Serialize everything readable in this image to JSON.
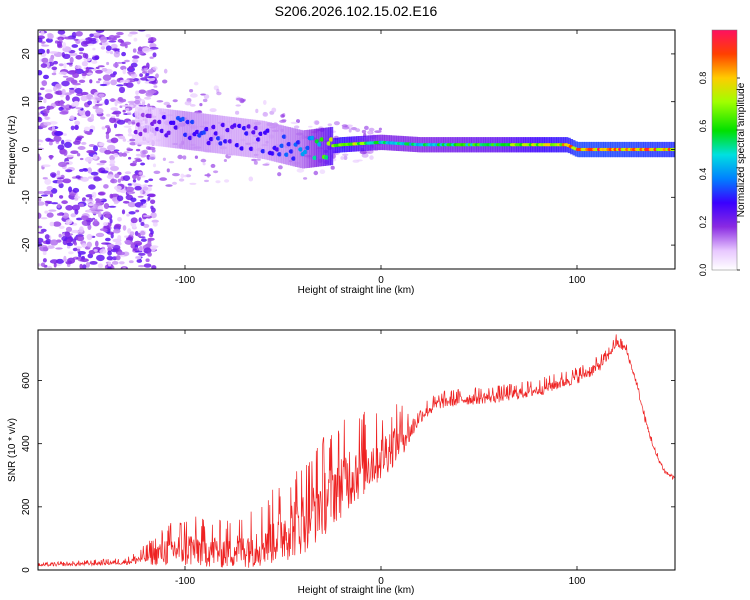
{
  "title": "S206.2026.102.15.02.E16",
  "chart_data": [
    {
      "type": "heatmap",
      "xlabel": "Height of straight line (km)",
      "ylabel": "Frequency (Hz)",
      "xlim": [
        -175,
        150
      ],
      "ylim": [
        -25,
        25
      ],
      "xticks": [
        -100,
        0,
        100
      ],
      "xtick_labels": [
        "-100",
        "0",
        "100"
      ],
      "yticks": [
        -20,
        -10,
        0,
        10,
        20
      ],
      "ytick_labels": [
        "-20",
        "-10",
        "0",
        "10",
        "20"
      ],
      "colorbar": {
        "label": "Normalized spectral amplitude",
        "range": [
          0,
          1
        ],
        "ticks": [
          0.0,
          0.2,
          0.4,
          0.6,
          0.8
        ],
        "tick_labels": [
          "0.0",
          "0.2",
          "0.4",
          "0.6",
          "0.8"
        ]
      },
      "description_points": {
        "ridge_height_km": [
          -120,
          -100,
          -80,
          -60,
          -40,
          -30,
          -20,
          0,
          20,
          40,
          60,
          80,
          95,
          100,
          120,
          150
        ],
        "ridge_frequency_hz": [
          5,
          4,
          3,
          2,
          0,
          0.5,
          1,
          1.5,
          1,
          1,
          1,
          1,
          1,
          0,
          0,
          0
        ],
        "ridge_amplitude": [
          0.2,
          0.35,
          0.3,
          0.3,
          0.4,
          0.6,
          0.85,
          0.55,
          0.55,
          0.6,
          0.65,
          0.8,
          0.85,
          0.95,
          0.95,
          0.9
        ]
      }
    },
    {
      "type": "line",
      "xlabel": "Height of straight line (km)",
      "ylabel": "SNR (10 * v/v)",
      "xlim": [
        -175,
        150
      ],
      "ylim": [
        0,
        760
      ],
      "xticks": [
        -100,
        0,
        100
      ],
      "xtick_labels": [
        "-100",
        "0",
        "100"
      ],
      "yticks": [
        0,
        200,
        400,
        600
      ],
      "ytick_labels": [
        "0",
        "200",
        "400",
        "600"
      ],
      "color": "#ee2222",
      "series": [
        {
          "name": "SNR",
          "x": [
            -175,
            -150,
            -130,
            -120,
            -110,
            -100,
            -90,
            -80,
            -70,
            -60,
            -50,
            -40,
            -30,
            -20,
            -10,
            0,
            5,
            10,
            15,
            20,
            30,
            40,
            50,
            60,
            70,
            80,
            90,
            100,
            110,
            115,
            120,
            125,
            130,
            135,
            140,
            145,
            150
          ],
          "y": [
            15,
            20,
            25,
            40,
            60,
            70,
            65,
            60,
            70,
            90,
            120,
            160,
            220,
            280,
            330,
            360,
            390,
            420,
            440,
            490,
            530,
            540,
            545,
            550,
            560,
            570,
            590,
            610,
            640,
            670,
            720,
            700,
            600,
            470,
            370,
            310,
            290
          ],
          "spread": [
            5,
            8,
            10,
            30,
            60,
            80,
            70,
            70,
            80,
            100,
            120,
            140,
            150,
            140,
            130,
            100,
            90,
            80,
            50,
            30,
            25,
            25,
            25,
            25,
            25,
            25,
            25,
            25,
            25,
            20,
            20,
            15,
            12,
            12,
            10,
            10,
            10
          ]
        }
      ]
    }
  ]
}
